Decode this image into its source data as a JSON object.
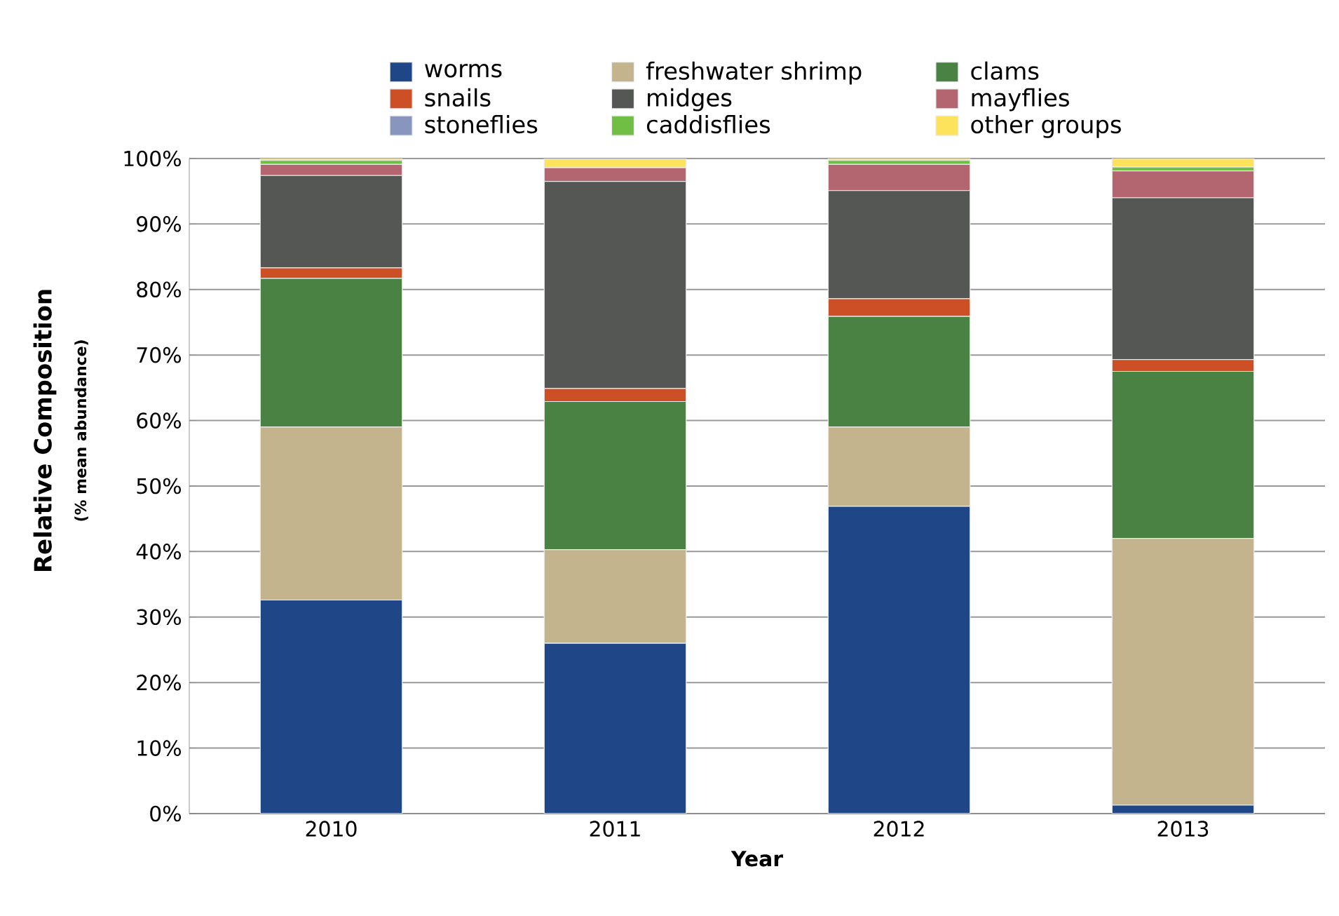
{
  "chart_data": {
    "type": "bar",
    "stacked": true,
    "xlabel": "Year",
    "ylabel": "Relative Composition",
    "annotations": [
      "(% mean abundance)"
    ],
    "categories": [
      "2010",
      "2011",
      "2012",
      "2013"
    ],
    "series": [
      {
        "name": "worms",
        "color": "#1f4788",
        "values": [
          32.6,
          26.0,
          46.9,
          1.3
        ]
      },
      {
        "name": "freshwater shrimp",
        "color": "#c4b48e",
        "values": [
          26.4,
          14.3,
          12.1,
          40.7
        ]
      },
      {
        "name": "clams",
        "color": "#4a8244",
        "values": [
          22.7,
          22.6,
          16.9,
          25.5
        ]
      },
      {
        "name": "snails",
        "color": "#cc4f25",
        "values": [
          1.6,
          2.0,
          2.7,
          1.8
        ]
      },
      {
        "name": "midges",
        "color": "#555755",
        "values": [
          14.1,
          31.6,
          16.5,
          24.7
        ]
      },
      {
        "name": "mayflies",
        "color": "#b46670",
        "values": [
          1.7,
          2.1,
          4.0,
          4.1
        ]
      },
      {
        "name": "stoneflies",
        "color": "#8896bf",
        "values": [
          0,
          0,
          0,
          0
        ]
      },
      {
        "name": "caddisflies",
        "color": "#70bf44",
        "values": [
          0.6,
          null,
          0.6,
          0.6
        ]
      },
      {
        "name": "other groups",
        "color": "#fde35b",
        "values": [
          0.3,
          1.3,
          0.3,
          1.3
        ]
      }
    ],
    "ylim": [
      0,
      100
    ],
    "yticks": [
      {
        "value": 0,
        "label": "0%"
      },
      {
        "value": 10,
        "label": "10%"
      },
      {
        "value": 20,
        "label": "20%"
      },
      {
        "value": 30,
        "label": "30%"
      },
      {
        "value": 40,
        "label": "40%"
      },
      {
        "value": 50,
        "label": "50%"
      },
      {
        "value": 60,
        "label": "60%"
      },
      {
        "value": 70,
        "label": "70%"
      },
      {
        "value": 80,
        "label": "80%"
      },
      {
        "value": 90,
        "label": "90%"
      },
      {
        "value": 100,
        "label": "100%"
      }
    ],
    "grid": "y",
    "legend": "top"
  }
}
